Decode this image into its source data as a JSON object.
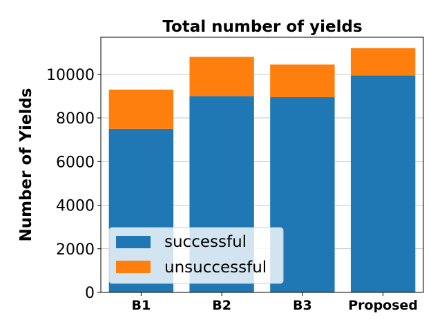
{
  "chart_data": {
    "type": "bar",
    "stacked": true,
    "title": "Total number of yields",
    "xlabel": "",
    "ylabel": "Number of Yields",
    "categories": [
      "B1",
      "B2",
      "B3",
      "Proposed"
    ],
    "series": [
      {
        "name": "successful",
        "values": [
          7500,
          9000,
          8950,
          9950
        ],
        "color": "#1f77b4"
      },
      {
        "name": "unsuccessful",
        "values": [
          1800,
          1800,
          1500,
          1250
        ],
        "color": "#ff7f0e"
      }
    ],
    "ylim": [
      0,
      11700
    ],
    "yticks": [
      "0",
      "2000",
      "4000",
      "6000",
      "8000",
      "10000"
    ],
    "grid": "horizontal",
    "legend_position": "lower-left"
  }
}
